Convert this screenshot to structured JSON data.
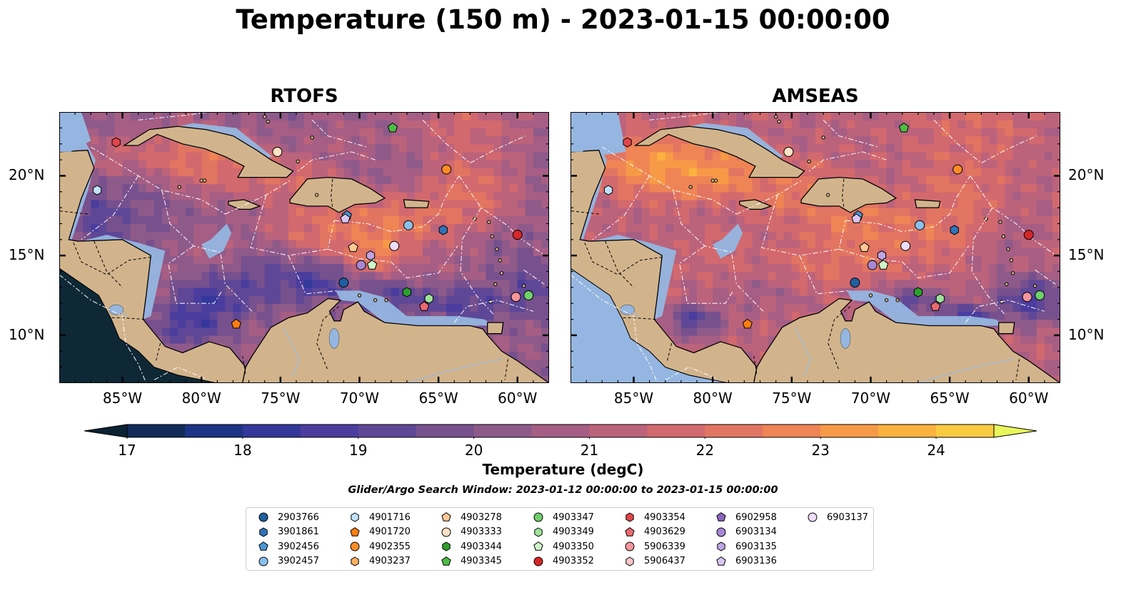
{
  "title": "Temperature (150 m) - 2023-01-15 00:00:00",
  "panels": [
    {
      "title": "RTOFS"
    },
    {
      "title": "AMSEAS"
    }
  ],
  "axes": {
    "lon_labels": [
      "85°W",
      "80°W",
      "75°W",
      "70°W",
      "65°W",
      "60°W"
    ],
    "lon_values": [
      -85,
      -80,
      -75,
      -70,
      -65,
      -60
    ],
    "lat_labels": [
      "20°N",
      "15°N",
      "10°N"
    ],
    "lat_values": [
      20,
      15,
      10
    ],
    "lon_range": [
      -89,
      -58
    ],
    "lat_range": [
      7,
      24
    ]
  },
  "colorbar": {
    "label": "Temperature (degC)",
    "ticks": [
      "17",
      "18",
      "19",
      "20",
      "21",
      "22",
      "23",
      "24"
    ],
    "tick_values": [
      17,
      18,
      19,
      20,
      21,
      22,
      23,
      24
    ],
    "range": [
      16.75,
      24.5
    ],
    "colors": [
      "#0b2233",
      "#122c5a",
      "#1d3385",
      "#33389a",
      "#4a3d9e",
      "#5e4796",
      "#77508e",
      "#8e5a8a",
      "#a65e84",
      "#bc637c",
      "#d2696e",
      "#e27561",
      "#ef8555",
      "#f79a47",
      "#fbb23e",
      "#f9cb41",
      "#f3e14a",
      "#e9f65c"
    ]
  },
  "search_window": "Glider/Argo Search Window: 2023-01-12 00:00:00 to 2023-01-15 00:00:00",
  "legend": [
    {
      "id": "2903766",
      "marker": "circle",
      "color": "#1f5fa0"
    },
    {
      "id": "3901861",
      "marker": "hexagon",
      "color": "#2f73b8"
    },
    {
      "id": "3902456",
      "marker": "pentagon",
      "color": "#4a96d6"
    },
    {
      "id": "3902457",
      "marker": "circle",
      "color": "#8cc0ec"
    },
    {
      "id": "4901716",
      "marker": "hexagon",
      "color": "#bfe0fa"
    },
    {
      "id": "4901720",
      "marker": "pentagon",
      "color": "#ff7f0e"
    },
    {
      "id": "4902355",
      "marker": "circle",
      "color": "#ff8c25"
    },
    {
      "id": "4903237",
      "marker": "hexagon",
      "color": "#ffaf5f"
    },
    {
      "id": "4903278",
      "marker": "pentagon",
      "color": "#ffc893"
    },
    {
      "id": "4903333",
      "marker": "circle",
      "color": "#ffe3c4"
    },
    {
      "id": "4903344",
      "marker": "hexagon",
      "color": "#2ca02c"
    },
    {
      "id": "4903345",
      "marker": "pentagon",
      "color": "#4cbc44"
    },
    {
      "id": "4903347",
      "marker": "circle",
      "color": "#6fcf6a"
    },
    {
      "id": "4903349",
      "marker": "hexagon",
      "color": "#9fe39a"
    },
    {
      "id": "4903350",
      "marker": "pentagon",
      "color": "#cdf5c7"
    },
    {
      "id": "4903352",
      "marker": "circle",
      "color": "#d62728"
    },
    {
      "id": "4903354",
      "marker": "hexagon",
      "color": "#e0454a"
    },
    {
      "id": "4903629",
      "marker": "pentagon",
      "color": "#ea6a6f"
    },
    {
      "id": "5906339",
      "marker": "circle",
      "color": "#f5959a"
    },
    {
      "id": "5906437",
      "marker": "hexagon",
      "color": "#fcc5c8"
    },
    {
      "id": "6902958",
      "marker": "pentagon",
      "color": "#8c63c0"
    },
    {
      "id": "6903134",
      "marker": "circle",
      "color": "#a887d4"
    },
    {
      "id": "6903135",
      "marker": "hexagon",
      "color": "#c0a4e4"
    },
    {
      "id": "6903136",
      "marker": "pentagon",
      "color": "#d9c6f2"
    },
    {
      "id": "6903137",
      "marker": "circle",
      "color": "#eedcfc"
    }
  ],
  "floats": [
    {
      "id": "2903766",
      "lon": -71.0,
      "lat": 13.3
    },
    {
      "id": "3901861",
      "lon": -64.7,
      "lat": 16.6
    },
    {
      "id": "3902456",
      "lon": -70.8,
      "lat": 17.5
    },
    {
      "id": "3902457",
      "lon": -66.9,
      "lat": 16.9
    },
    {
      "id": "4901716",
      "lon": -86.6,
      "lat": 19.1
    },
    {
      "id": "4901720",
      "lon": -77.8,
      "lat": 10.7
    },
    {
      "id": "4902355",
      "lon": -64.5,
      "lat": 20.4
    },
    {
      "id": "4903278",
      "lon": -70.4,
      "lat": 15.5
    },
    {
      "id": "4903333",
      "lon": -75.2,
      "lat": 21.5
    },
    {
      "id": "4903344",
      "lon": -67.0,
      "lat": 12.7
    },
    {
      "id": "4903345",
      "lon": -67.9,
      "lat": 23.0
    },
    {
      "id": "4903347",
      "lon": -59.3,
      "lat": 12.5
    },
    {
      "id": "4903349",
      "lon": -65.6,
      "lat": 12.3
    },
    {
      "id": "4903350",
      "lon": -69.2,
      "lat": 14.4
    },
    {
      "id": "4903352",
      "lon": -60.0,
      "lat": 16.3
    },
    {
      "id": "4903354",
      "lon": -85.4,
      "lat": 22.1
    },
    {
      "id": "4903629",
      "lon": -65.9,
      "lat": 11.8
    },
    {
      "id": "5906339",
      "lon": -60.1,
      "lat": 12.4
    },
    {
      "id": "6903134",
      "lon": -69.9,
      "lat": 14.4
    },
    {
      "id": "6903135",
      "lon": -69.3,
      "lat": 15.0
    },
    {
      "id": "6903136",
      "lon": -70.9,
      "lat": 17.3
    },
    {
      "id": "6903137",
      "lon": -67.8,
      "lat": 15.6
    }
  ]
}
